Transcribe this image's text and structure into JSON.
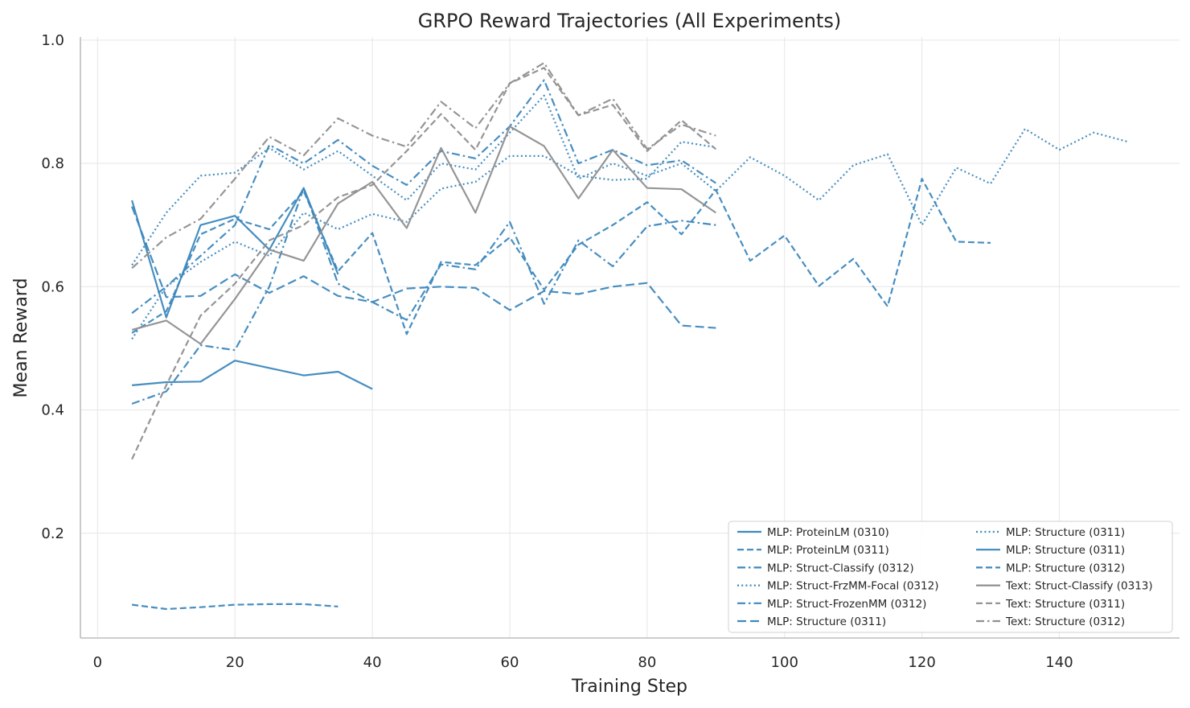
{
  "chart_data": {
    "type": "line",
    "title": "GRPO Reward Trajectories (All Experiments)",
    "xlabel": "Training Step",
    "ylabel": "Mean Reward",
    "xlim": [
      -2.5,
      157.5
    ],
    "ylim": [
      0.03,
      1.005
    ],
    "xticks": [
      0,
      20,
      40,
      60,
      80,
      100,
      120,
      140
    ],
    "yticks": [
      0.2,
      0.4,
      0.6,
      0.8,
      1.0
    ],
    "grid": true,
    "legend_position": "lower-right",
    "colors": {
      "mlp": "#3d88bd",
      "text": "#8f8f8f"
    },
    "series": [
      {
        "name": "MLP: ProteinLM (0310)",
        "style": "solid",
        "group": "mlp",
        "x": [
          5,
          10,
          15,
          20,
          25,
          30,
          35,
          40
        ],
        "y": [
          0.44,
          0.445,
          0.446,
          0.48,
          0.468,
          0.456,
          0.462,
          0.434
        ]
      },
      {
        "name": "MLP: ProteinLM (0311)",
        "style": "dash",
        "group": "mlp",
        "x": [
          5,
          10,
          15,
          20,
          25,
          30,
          35
        ],
        "y": [
          0.084,
          0.077,
          0.08,
          0.084,
          0.085,
          0.085,
          0.081
        ]
      },
      {
        "name": "MLP: Struct-Classify (0312)",
        "style": "dashdot",
        "group": "mlp",
        "x": [
          5,
          10,
          15,
          20,
          25,
          30,
          35,
          40,
          45,
          50,
          55,
          60,
          65,
          70,
          75,
          80,
          85,
          90
        ],
        "y": [
          0.41,
          0.43,
          0.505,
          0.497,
          0.6,
          0.76,
          0.605,
          0.575,
          0.546,
          0.636,
          0.628,
          0.705,
          0.572,
          0.675,
          0.633,
          0.698,
          0.707,
          0.7
        ]
      },
      {
        "name": "MLP: Struct-FrzMM-Focal (0312)",
        "style": "dot",
        "group": "mlp",
        "x": [
          5,
          10,
          15,
          20,
          25,
          30,
          35,
          40,
          45,
          50,
          55,
          60,
          65,
          70,
          75,
          80,
          85,
          90
        ],
        "y": [
          0.515,
          0.6,
          0.64,
          0.673,
          0.65,
          0.72,
          0.693,
          0.718,
          0.705,
          0.759,
          0.77,
          0.812,
          0.812,
          0.78,
          0.773,
          0.775,
          0.835,
          0.826
        ]
      },
      {
        "name": "MLP: Struct-FrozenMM (0312)",
        "style": "dashdot",
        "group": "mlp",
        "x": [
          5,
          10,
          15,
          20,
          25,
          30,
          35,
          40,
          45,
          50,
          55,
          60,
          65,
          70,
          75,
          80,
          85,
          90
        ],
        "y": [
          0.557,
          0.6,
          0.65,
          0.7,
          0.83,
          0.8,
          0.838,
          0.796,
          0.765,
          0.82,
          0.808,
          0.86,
          0.935,
          0.8,
          0.822,
          0.797,
          0.805,
          0.768
        ]
      },
      {
        "name": "MLP: Structure (0311)",
        "style": "longdash",
        "group": "mlp",
        "x": [
          5,
          10,
          15,
          20,
          25,
          30,
          35,
          40,
          45,
          50,
          55,
          60,
          65,
          70,
          75,
          80,
          85,
          90
        ],
        "y": [
          0.73,
          0.583,
          0.585,
          0.62,
          0.59,
          0.617,
          0.585,
          0.575,
          0.597,
          0.6,
          0.598,
          0.562,
          0.593,
          0.588,
          0.6,
          0.606,
          0.537,
          0.533
        ]
      },
      {
        "name": "MLP: Structure (0311)",
        "style": "dot",
        "group": "mlp",
        "x": [
          5,
          10,
          15,
          20,
          25,
          30,
          35,
          40,
          45,
          50,
          55,
          60,
          65,
          70,
          75,
          80,
          85,
          90,
          95,
          100,
          105,
          110,
          115,
          120,
          125,
          130,
          135,
          140,
          145,
          150
        ],
        "y": [
          0.635,
          0.72,
          0.78,
          0.785,
          0.825,
          0.79,
          0.82,
          0.78,
          0.74,
          0.8,
          0.79,
          0.85,
          0.91,
          0.775,
          0.8,
          0.78,
          0.8,
          0.755,
          0.81,
          0.78,
          0.74,
          0.797,
          0.815,
          0.7,
          0.793,
          0.767,
          0.856,
          0.822,
          0.85,
          0.835
        ]
      },
      {
        "name": "MLP: Structure (0311)",
        "style": "solid",
        "group": "mlp",
        "x": [
          5,
          10,
          15,
          20,
          25,
          30,
          35
        ],
        "y": [
          0.74,
          0.55,
          0.7,
          0.715,
          0.66,
          0.76,
          0.62
        ]
      },
      {
        "name": "MLP: Structure (0312)",
        "style": "dash",
        "group": "mlp",
        "x": [
          5,
          10,
          15,
          20,
          25,
          30,
          35,
          40,
          45,
          50,
          55,
          60,
          65,
          70,
          75,
          80,
          85,
          90,
          95,
          100,
          105,
          110,
          115,
          120,
          125,
          130
        ],
        "y": [
          0.525,
          0.56,
          0.685,
          0.71,
          0.693,
          0.755,
          0.625,
          0.687,
          0.523,
          0.64,
          0.635,
          0.68,
          0.595,
          0.668,
          0.7,
          0.737,
          0.685,
          0.757,
          0.642,
          0.683,
          0.601,
          0.645,
          0.568,
          0.775,
          0.673,
          0.671
        ]
      },
      {
        "name": "Text: Struct-Classify (0313)",
        "style": "solid",
        "group": "text",
        "x": [
          5,
          10,
          15,
          20,
          25,
          30,
          35,
          40,
          45,
          50,
          55,
          60,
          65,
          70,
          75,
          80,
          85,
          90
        ],
        "y": [
          0.53,
          0.545,
          0.507,
          0.58,
          0.66,
          0.642,
          0.735,
          0.77,
          0.695,
          0.825,
          0.72,
          0.86,
          0.828,
          0.743,
          0.822,
          0.76,
          0.758,
          0.72
        ]
      },
      {
        "name": "Text: Structure (0311)",
        "style": "dash",
        "group": "text",
        "x": [
          5,
          10,
          15,
          20,
          25,
          30,
          35,
          40,
          45,
          50,
          55,
          60,
          65,
          70,
          75,
          80,
          85,
          90
        ],
        "y": [
          0.32,
          0.44,
          0.553,
          0.605,
          0.675,
          0.7,
          0.745,
          0.765,
          0.82,
          0.88,
          0.822,
          0.93,
          0.955,
          0.878,
          0.895,
          0.82,
          0.87,
          0.823
        ]
      },
      {
        "name": "Text: Structure (0312)",
        "style": "dashdot",
        "group": "text",
        "x": [
          5,
          10,
          15,
          20,
          25,
          30,
          35,
          40,
          45,
          50,
          55,
          60,
          65,
          70,
          75,
          80,
          85,
          90
        ],
        "y": [
          0.63,
          0.68,
          0.71,
          0.775,
          0.843,
          0.813,
          0.873,
          0.845,
          0.827,
          0.9,
          0.857,
          0.93,
          0.963,
          0.878,
          0.905,
          0.823,
          0.863,
          0.845
        ]
      }
    ]
  }
}
